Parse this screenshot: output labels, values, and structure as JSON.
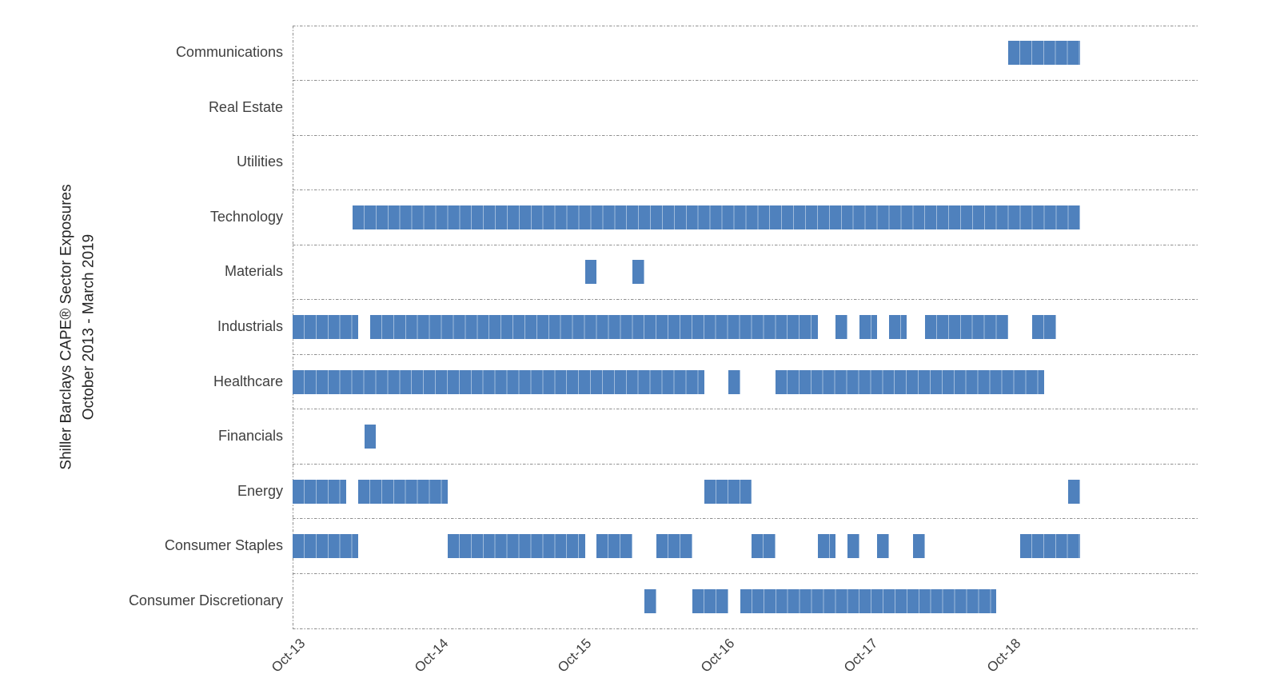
{
  "chart_data": {
    "type": "bar",
    "subtype": "gantt-exposure-timeline",
    "title_lines": {
      "line1": "Shiller Barclays CAPE® Sector Exposures",
      "line2": "October 2013 - March 2019"
    },
    "bar_color": "#4F81BD",
    "grid": "dashed horizontal row separators and dashed left axis line",
    "legend": "none",
    "x_axis": {
      "unit": "months since 2013-10 (0 = Oct-2013, end exclusive, 66 = end of Mar-2019)",
      "xlim_months": [
        0,
        76
      ],
      "ticks": [
        {
          "label": "Oct-13",
          "month": 0
        },
        {
          "label": "Oct-14",
          "month": 12
        },
        {
          "label": "Oct-15",
          "month": 24
        },
        {
          "label": "Oct-16",
          "month": 36
        },
        {
          "label": "Oct-17",
          "month": 48
        },
        {
          "label": "Oct-18",
          "month": 60
        }
      ]
    },
    "categories": [
      {
        "label": "Communications",
        "segments": [
          [
            60,
            66
          ]
        ]
      },
      {
        "label": "Real Estate",
        "segments": []
      },
      {
        "label": "Utilities",
        "segments": []
      },
      {
        "label": "Technology",
        "segments": [
          [
            5,
            66
          ]
        ]
      },
      {
        "label": "Materials",
        "segments": [
          [
            24.5,
            25.5
          ],
          [
            28.5,
            29.5
          ]
        ]
      },
      {
        "label": "Industrials",
        "segments": [
          [
            0,
            5.5
          ],
          [
            6.5,
            44
          ],
          [
            45.5,
            46.5
          ],
          [
            47.5,
            49
          ],
          [
            50,
            51.5
          ],
          [
            53,
            60
          ],
          [
            62,
            64
          ]
        ]
      },
      {
        "label": "Healthcare",
        "segments": [
          [
            0,
            34.5
          ],
          [
            36.5,
            37.5
          ],
          [
            40.5,
            63
          ]
        ]
      },
      {
        "label": "Financials",
        "segments": [
          [
            6,
            7
          ]
        ]
      },
      {
        "label": "Energy",
        "segments": [
          [
            0,
            4.5
          ],
          [
            5.5,
            13
          ],
          [
            34.5,
            38.5
          ],
          [
            65,
            66
          ]
        ]
      },
      {
        "label": "Consumer Staples",
        "segments": [
          [
            0,
            5.5
          ],
          [
            13,
            24.5
          ],
          [
            25.5,
            28.5
          ],
          [
            30.5,
            33.5
          ],
          [
            38.5,
            40.5
          ],
          [
            44,
            45.5
          ],
          [
            46.5,
            47.5
          ],
          [
            49,
            50
          ],
          [
            52,
            53
          ],
          [
            61,
            66
          ]
        ]
      },
      {
        "label": "Consumer Discretionary",
        "segments": [
          [
            29.5,
            30.5
          ],
          [
            33.5,
            36.5
          ],
          [
            37.5,
            59
          ]
        ]
      }
    ]
  }
}
